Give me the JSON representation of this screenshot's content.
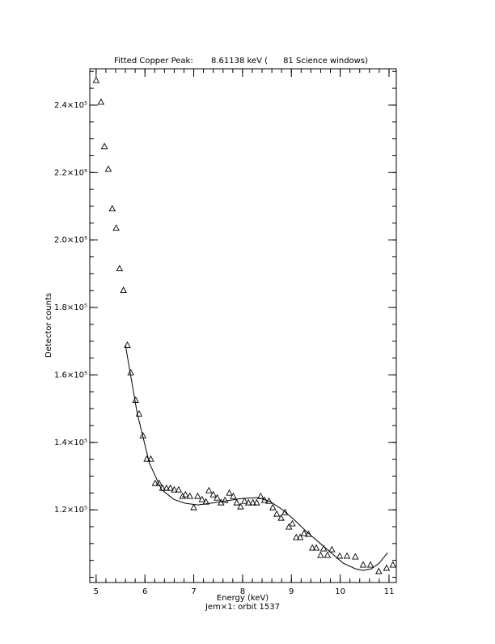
{
  "chart_data": {
    "type": "scatter",
    "title": "Fitted Copper Peak:       8.61138 keV (      81 Science windows)",
    "x_label": "Energy (keV)",
    "subtitle": "Jem×1: orbit 1537",
    "y_label": "Detector counts",
    "xlim": [
      4.87,
      11.15
    ],
    "ylim": [
      98440,
      250780
    ],
    "xticks": [
      5,
      6,
      7,
      8,
      9,
      10,
      11
    ],
    "yticks": [
      {
        "value": 120000,
        "label": "1.2×10⁵"
      },
      {
        "value": 140000,
        "label": "1.4×10⁵"
      },
      {
        "value": 160000,
        "label": "1.6×10⁵"
      },
      {
        "value": 180000,
        "label": "1.8×10⁵"
      },
      {
        "value": 200000,
        "label": "2.0×10⁵"
      },
      {
        "value": 220000,
        "label": "2.2×10⁵"
      },
      {
        "value": 240000,
        "label": "2.4×10⁵"
      }
    ],
    "color": "#000000",
    "series": [
      {
        "marker": "triangle",
        "x": [
          5.0,
          5.1,
          5.17,
          5.25,
          5.33,
          5.41,
          5.48,
          5.56,
          5.64,
          5.71,
          5.81,
          5.88,
          5.96,
          6.04,
          6.12,
          6.21,
          6.29,
          6.36,
          6.44,
          6.52,
          6.6,
          6.69,
          6.77,
          6.83,
          6.92,
          7.0,
          7.08,
          7.17,
          7.25,
          7.31,
          7.4,
          7.48,
          7.56,
          7.64,
          7.73,
          7.81,
          7.88,
          7.96,
          8.04,
          8.12,
          8.21,
          8.29,
          8.37,
          8.45,
          8.54,
          8.62,
          8.7,
          8.79,
          8.87,
          8.95,
          9.02,
          9.1,
          9.18,
          9.26,
          9.35,
          9.43,
          9.51,
          9.6,
          9.66,
          9.74,
          9.83,
          9.99,
          10.14,
          10.31,
          10.47,
          10.62,
          10.79,
          10.95,
          11.08
        ],
        "values": [
          247400,
          240950,
          227800,
          221070,
          209340,
          203590,
          191600,
          185140,
          168860,
          160720,
          152570,
          148500,
          142030,
          135090,
          135100,
          127900,
          127900,
          126470,
          126470,
          126470,
          125990,
          125990,
          124070,
          124550,
          124070,
          120720,
          124070,
          123110,
          122400,
          125750,
          124550,
          123590,
          122160,
          122870,
          125030,
          124070,
          122160,
          120960,
          122630,
          122160,
          122160,
          122160,
          124070,
          122870,
          122630,
          120720,
          118800,
          117600,
          119280,
          114970,
          115930,
          111860,
          111860,
          113050,
          112820,
          108740,
          108740,
          106590,
          108500,
          106590,
          108260,
          106350,
          106350,
          106110,
          103710,
          103710,
          101800,
          102760,
          103710
        ]
      },
      {
        "marker": "line",
        "x": [
          5.6,
          5.84,
          6.09,
          6.34,
          6.59,
          6.83,
          7.08,
          7.33,
          7.66,
          7.99,
          8.32,
          8.57,
          8.82,
          9.07,
          9.31,
          9.56,
          9.81,
          10.06,
          10.31,
          10.47,
          10.64,
          10.8,
          10.97
        ],
        "values": [
          168860,
          148740,
          133890,
          125990,
          123110,
          121920,
          121440,
          121920,
          122630,
          123350,
          123590,
          122400,
          120000,
          116890,
          113530,
          110420,
          107310,
          104190,
          102520,
          102040,
          102520,
          104190,
          107310
        ]
      }
    ]
  }
}
